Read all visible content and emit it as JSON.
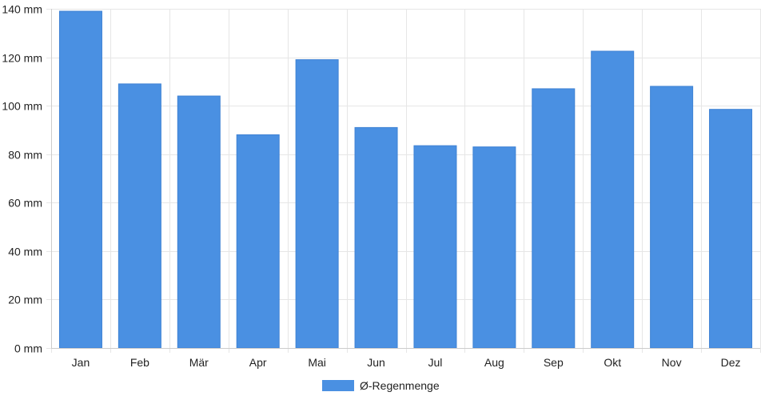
{
  "chart_data": {
    "type": "bar",
    "categories": [
      "Jan",
      "Feb",
      "Mär",
      "Apr",
      "Mai",
      "Jun",
      "Jul",
      "Aug",
      "Sep",
      "Okt",
      "Nov",
      "Dez"
    ],
    "series": [
      {
        "name": "Ø-Regenmenge",
        "values": [
          139,
          109,
          104,
          88,
          119,
          91,
          83.5,
          83,
          107,
          122.5,
          108,
          98.5
        ]
      }
    ],
    "ylim": [
      0,
      140
    ],
    "yticks": [
      0,
      20,
      40,
      60,
      80,
      100,
      120,
      140
    ],
    "ytick_labels": [
      "0 mm",
      "20 mm",
      "40 mm",
      "60 mm",
      "80 mm",
      "100 mm",
      "120 mm",
      "140 mm"
    ],
    "grid": true,
    "legend_position": "bottom-center",
    "bar_color": "#4a90e2",
    "grid_color": "#e6e6e6",
    "axis_color": "#cccccc"
  }
}
